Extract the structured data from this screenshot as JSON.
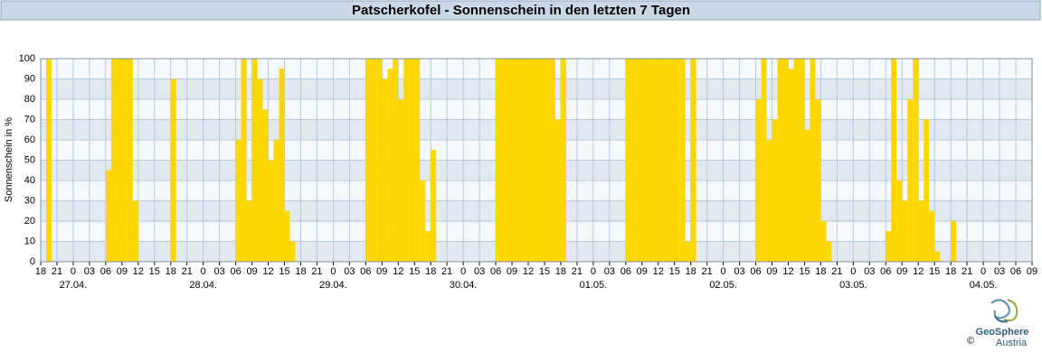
{
  "chart_data": {
    "type": "bar",
    "title": "Patscherkofel - Sonnenschein in den letzten 7 Tagen",
    "ylabel": "Sonnenschein in %",
    "color": "#ffd700",
    "grid": true,
    "xlim": [
      0,
      183
    ],
    "ylim": [
      0,
      100
    ],
    "yticks": [
      0,
      10,
      20,
      30,
      40,
      50,
      60,
      70,
      80,
      90,
      100
    ],
    "xticks": [
      {
        "value": 0,
        "label": "18"
      },
      {
        "value": 3,
        "label": "21"
      },
      {
        "value": 6,
        "label": "0"
      },
      {
        "value": 9,
        "label": "03"
      },
      {
        "value": 12,
        "label": "06"
      },
      {
        "value": 15,
        "label": "09"
      },
      {
        "value": 18,
        "label": "12"
      },
      {
        "value": 21,
        "label": "15"
      },
      {
        "value": 24,
        "label": "18"
      },
      {
        "value": 27,
        "label": "21"
      },
      {
        "value": 30,
        "label": "0"
      },
      {
        "value": 33,
        "label": "03"
      },
      {
        "value": 36,
        "label": "06"
      },
      {
        "value": 39,
        "label": "09"
      },
      {
        "value": 42,
        "label": "12"
      },
      {
        "value": 45,
        "label": "15"
      },
      {
        "value": 48,
        "label": "18"
      },
      {
        "value": 51,
        "label": "21"
      },
      {
        "value": 54,
        "label": "0"
      },
      {
        "value": 57,
        "label": "03"
      },
      {
        "value": 60,
        "label": "06"
      },
      {
        "value": 63,
        "label": "09"
      },
      {
        "value": 66,
        "label": "12"
      },
      {
        "value": 69,
        "label": "15"
      },
      {
        "value": 72,
        "label": "18"
      },
      {
        "value": 75,
        "label": "21"
      },
      {
        "value": 78,
        "label": "0"
      },
      {
        "value": 81,
        "label": "03"
      },
      {
        "value": 84,
        "label": "06"
      },
      {
        "value": 87,
        "label": "09"
      },
      {
        "value": 90,
        "label": "12"
      },
      {
        "value": 93,
        "label": "15"
      },
      {
        "value": 96,
        "label": "18"
      },
      {
        "value": 99,
        "label": "21"
      },
      {
        "value": 102,
        "label": "0"
      },
      {
        "value": 105,
        "label": "03"
      },
      {
        "value": 108,
        "label": "06"
      },
      {
        "value": 111,
        "label": "09"
      },
      {
        "value": 114,
        "label": "12"
      },
      {
        "value": 117,
        "label": "15"
      },
      {
        "value": 120,
        "label": "18"
      },
      {
        "value": 123,
        "label": "21"
      },
      {
        "value": 126,
        "label": "0"
      },
      {
        "value": 129,
        "label": "03"
      },
      {
        "value": 132,
        "label": "06"
      },
      {
        "value": 135,
        "label": "09"
      },
      {
        "value": 138,
        "label": "12"
      },
      {
        "value": 141,
        "label": "15"
      },
      {
        "value": 144,
        "label": "18"
      },
      {
        "value": 147,
        "label": "21"
      },
      {
        "value": 150,
        "label": "0"
      },
      {
        "value": 153,
        "label": "03"
      },
      {
        "value": 156,
        "label": "06"
      },
      {
        "value": 159,
        "label": "09"
      },
      {
        "value": 162,
        "label": "12"
      },
      {
        "value": 165,
        "label": "15"
      },
      {
        "value": 168,
        "label": "18"
      },
      {
        "value": 171,
        "label": "21"
      },
      {
        "value": 174,
        "label": "0"
      },
      {
        "value": 177,
        "label": "03"
      },
      {
        "value": 180,
        "label": "06"
      },
      {
        "value": 183,
        "label": "09"
      }
    ],
    "date_labels": [
      {
        "value": 6,
        "label": "27.04."
      },
      {
        "value": 30,
        "label": "28.04."
      },
      {
        "value": 54,
        "label": "29.04."
      },
      {
        "value": 78,
        "label": "30.04."
      },
      {
        "value": 102,
        "label": "01.05."
      },
      {
        "value": 126,
        "label": "02.05."
      },
      {
        "value": 150,
        "label": "03.05."
      },
      {
        "value": 174,
        "label": "04.05."
      }
    ],
    "x": [
      1,
      12,
      13,
      14,
      15,
      16,
      17,
      24,
      36,
      37,
      38,
      39,
      40,
      41,
      42,
      43,
      44,
      45,
      46,
      60,
      61,
      62,
      63,
      64,
      65,
      66,
      67,
      68,
      69,
      70,
      71,
      72,
      84,
      85,
      86,
      87,
      88,
      89,
      90,
      91,
      92,
      93,
      94,
      95,
      96,
      108,
      109,
      110,
      111,
      112,
      113,
      114,
      115,
      116,
      117,
      118,
      119,
      120,
      132,
      133,
      134,
      135,
      136,
      137,
      138,
      139,
      140,
      141,
      142,
      143,
      144,
      145,
      156,
      157,
      158,
      159,
      160,
      161,
      162,
      163,
      164,
      165,
      168
    ],
    "values": [
      100,
      45,
      100,
      100,
      100,
      100,
      30,
      90,
      60,
      100,
      30,
      100,
      90,
      75,
      50,
      60,
      95,
      25,
      10,
      100,
      100,
      100,
      90,
      95,
      100,
      80,
      100,
      100,
      100,
      40,
      15,
      55,
      100,
      100,
      100,
      100,
      100,
      100,
      100,
      100,
      100,
      100,
      100,
      70,
      100,
      100,
      100,
      100,
      100,
      100,
      100,
      100,
      100,
      100,
      100,
      100,
      10,
      100,
      80,
      100,
      60,
      70,
      100,
      100,
      95,
      100,
      100,
      65,
      100,
      80,
      20,
      10,
      15,
      100,
      40,
      30,
      80,
      100,
      30,
      70,
      25,
      5,
      20
    ],
    "logo": {
      "name": "GeoSphere",
      "sub": "Austria",
      "copyright": "©"
    }
  }
}
